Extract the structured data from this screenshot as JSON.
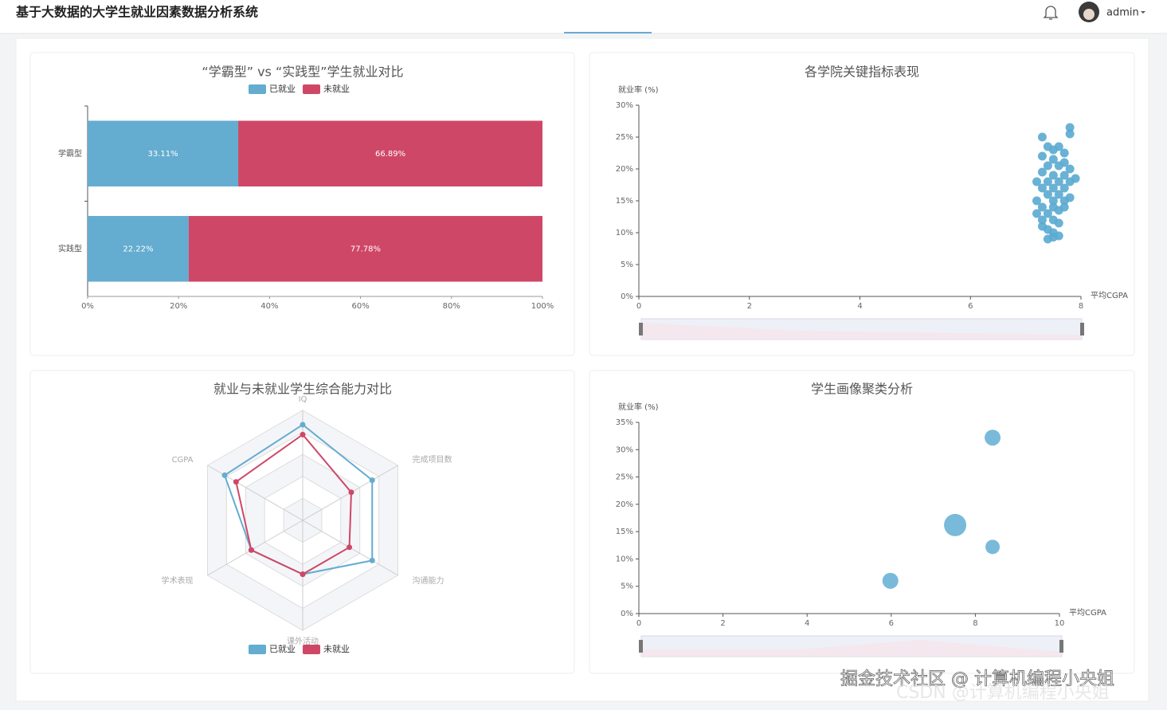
{
  "header": {
    "title": "基于大数据的大学生就业因素数据分析系统",
    "user": "admin"
  },
  "watermark": [
    "掘金技术社区 @ 计算机编程小央姐",
    "CSDN @计算机编程小央姐"
  ],
  "chart_data": [
    {
      "type": "bar",
      "orientation": "horizontal",
      "stacked": true,
      "title": "“学霸型” vs “实践型”学生就业对比",
      "categories": [
        "学霸型",
        "实践型"
      ],
      "series": [
        {
          "name": "已就业",
          "color": "#64acd0",
          "values": [
            33.11,
            22.22
          ],
          "value_labels": [
            "33.11%",
            "22.22%"
          ]
        },
        {
          "name": "未就业",
          "color": "#cf4767",
          "values": [
            66.89,
            77.78
          ],
          "value_labels": [
            "66.89%",
            "77.78%"
          ]
        }
      ],
      "xlim": [
        0,
        100
      ],
      "xticks": [
        {
          "value": 0,
          "label": "0%"
        },
        {
          "value": 20,
          "label": "20%"
        },
        {
          "value": 40,
          "label": "40%"
        },
        {
          "value": 60,
          "label": "60%"
        },
        {
          "value": 80,
          "label": "80%"
        },
        {
          "value": 100,
          "label": "100%"
        }
      ]
    },
    {
      "type": "scatter",
      "title": "各学院关键指标表现",
      "y_label": "就业率 (%)",
      "x_label": "平均CGPA",
      "color": "#5aaad0",
      "x": [
        7.8,
        7.8,
        7.3,
        7.4,
        7.5,
        7.6,
        7.7,
        7.3,
        7.5,
        7.7,
        7.4,
        7.6,
        7.8,
        7.3,
        7.5,
        7.7,
        7.9,
        7.2,
        7.4,
        7.6,
        7.8,
        7.3,
        7.5,
        7.7,
        7.4,
        7.6,
        7.8,
        7.2,
        7.5,
        7.7,
        7.3,
        7.5,
        7.7,
        7.2,
        7.4,
        7.6,
        7.3,
        7.5,
        7.6,
        7.3,
        7.4,
        7.5,
        7.6,
        7.4,
        7.5
      ],
      "values": [
        26.5,
        25.5,
        25,
        23.5,
        23,
        23.5,
        22.5,
        22,
        21.5,
        21,
        20.5,
        20.5,
        20,
        19.5,
        19,
        19,
        18.5,
        18,
        18,
        18,
        18,
        17,
        17,
        17,
        16,
        16,
        15.5,
        15,
        15,
        15,
        14,
        14,
        14,
        13,
        13,
        13.5,
        12,
        12,
        11.5,
        11,
        10.5,
        10,
        9.5,
        9,
        9.3
      ],
      "xlim": [
        0,
        8
      ],
      "xticks": [
        0,
        2,
        4,
        6,
        8
      ],
      "ylim": [
        0,
        30
      ],
      "yticks": [
        {
          "value": 0,
          "label": "0%"
        },
        {
          "value": 5,
          "label": "5%"
        },
        {
          "value": 10,
          "label": "10%"
        },
        {
          "value": 15,
          "label": "15%"
        },
        {
          "value": 20,
          "label": "20%"
        },
        {
          "value": 25,
          "label": "25%"
        },
        {
          "value": 30,
          "label": "30%"
        }
      ]
    },
    {
      "type": "radar",
      "title": "就业与未就业学生综合能力对比",
      "indicators": [
        "IQ",
        "完成项目数",
        "沟通能力",
        "课外活动",
        "学术表现",
        "CGPA"
      ],
      "rlim": [
        0,
        100
      ],
      "series": [
        {
          "name": "已就业",
          "color": "#64acd0",
          "values": [
            87,
            73,
            73,
            49,
            54,
            82
          ]
        },
        {
          "name": "未就业",
          "color": "#cf4767",
          "values": [
            78,
            51,
            49,
            49,
            54,
            70
          ]
        }
      ]
    },
    {
      "type": "bubble",
      "title": "学生画像聚类分析",
      "y_label": "就业率 (%)",
      "x_label": "平均CGPA",
      "color": "#6ab2d6",
      "x": [
        5.98,
        7.52,
        8.41,
        8.41
      ],
      "values": [
        6.0,
        16.2,
        32.2,
        12.2
      ],
      "sizes": [
        10,
        14,
        10,
        9
      ],
      "xlim": [
        0,
        10
      ],
      "xticks": [
        0,
        2,
        4,
        6,
        8,
        10
      ],
      "ylim": [
        0,
        35
      ],
      "yticks": [
        {
          "value": 0,
          "label": "0%"
        },
        {
          "value": 5,
          "label": "5%"
        },
        {
          "value": 10,
          "label": "10%"
        },
        {
          "value": 15,
          "label": "15%"
        },
        {
          "value": 20,
          "label": "20%"
        },
        {
          "value": 25,
          "label": "25%"
        },
        {
          "value": 30,
          "label": "30%"
        },
        {
          "value": 35,
          "label": "35%"
        }
      ]
    }
  ]
}
